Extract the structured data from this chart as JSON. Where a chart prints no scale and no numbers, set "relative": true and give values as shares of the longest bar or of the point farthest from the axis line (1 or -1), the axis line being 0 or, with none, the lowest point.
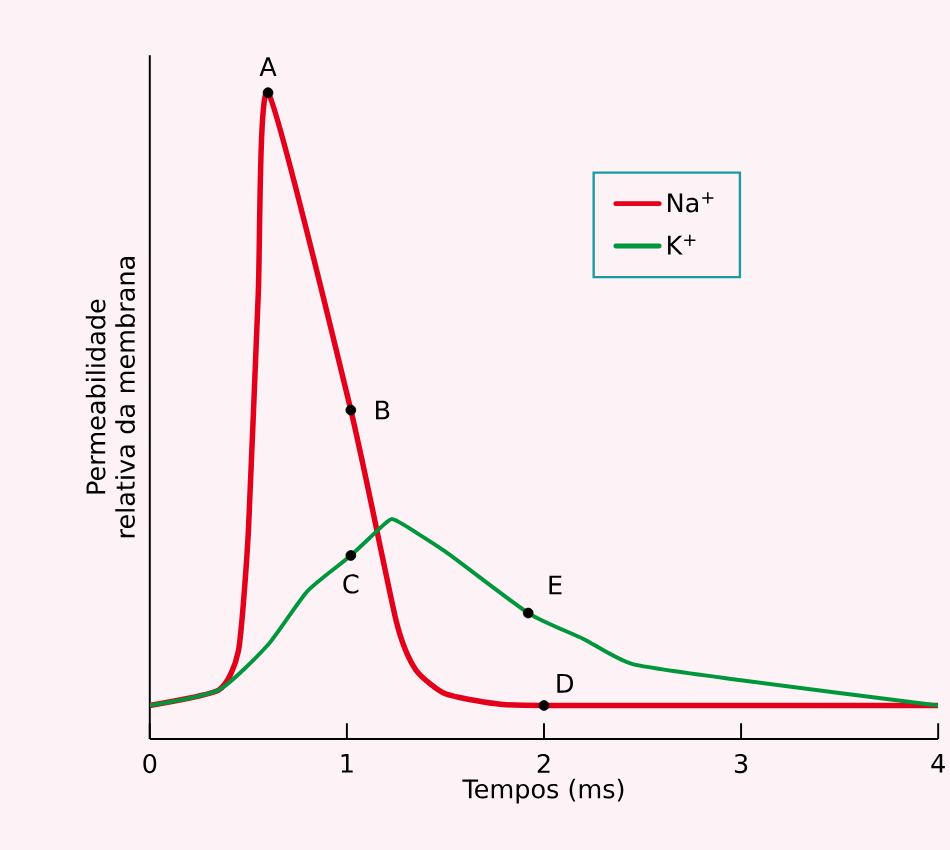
{
  "chart_data": {
    "type": "line",
    "xlabel": "Tempos (ms)",
    "ylabel": "Permeabilidade relativa da membrana",
    "relative": true,
    "xlim": [
      0,
      4
    ],
    "xticks": [
      0,
      1,
      2,
      3,
      4
    ],
    "legend": "top right",
    "grid": false,
    "marker": "none",
    "line_style": "solid",
    "series": [
      {
        "name": "Na$^{+}$",
        "color": "#e3001b",
        "x": [
          0,
          0.35,
          0.45,
          0.5,
          0.55,
          0.6,
          1.02,
          1.25,
          1.35,
          1.5,
          1.75,
          2.0,
          4.0
        ],
        "values": [
          0.052,
          0.076,
          0.137,
          0.32,
          0.686,
          1.0,
          0.509,
          0.183,
          0.107,
          0.07,
          0.055,
          0.052,
          0.052
        ]
      },
      {
        "name": "K$^{+}$",
        "color": "#00963c",
        "x": [
          0,
          0.35,
          0.6,
          0.8,
          1.02,
          1.2,
          1.25,
          1.5,
          1.92,
          2.2,
          2.45,
          3.0,
          4.0
        ],
        "values": [
          0.052,
          0.076,
          0.146,
          0.229,
          0.284,
          0.335,
          0.338,
          0.29,
          0.195,
          0.155,
          0.116,
          0.091,
          0.052
        ]
      },
      {
        "type": "scatter",
        "marker": "circle",
        "color": "#000000",
        "x": [
          0.6,
          1.02,
          1.02,
          2.0,
          1.92
        ],
        "values": [
          1.0,
          0.509,
          0.284,
          0.052,
          0.195
        ]
      }
    ],
    "annotations": [
      {
        "text": "A",
        "x": 0.6,
        "y": 1.0
      },
      {
        "text": "B",
        "x": 1.02,
        "y": 0.509
      },
      {
        "text": "C",
        "x": 1.02,
        "y": 0.284
      },
      {
        "text": "D",
        "x": 2.0,
        "y": 0.052
      },
      {
        "text": "E",
        "x": 1.92,
        "y": 0.195
      }
    ]
  }
}
